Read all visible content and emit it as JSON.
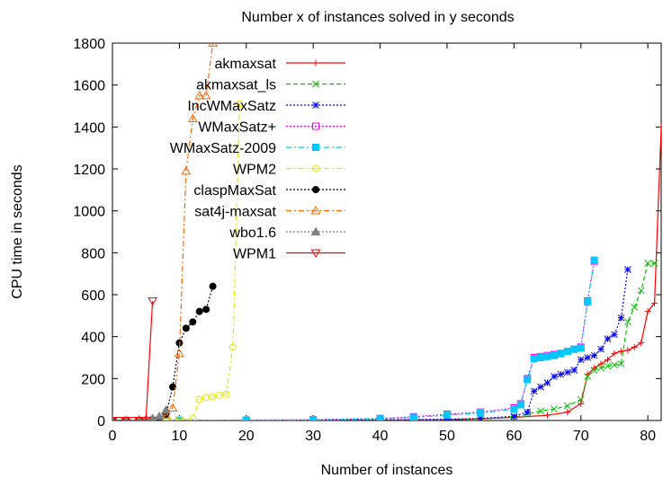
{
  "chart_data": {
    "type": "line",
    "title": "Number x of instances solved in y seconds",
    "xlabel": "Number of instances",
    "ylabel": "CPU time in seconds",
    "xlim": [
      0,
      82
    ],
    "ylim": [
      0,
      1800
    ],
    "xticks": [
      0,
      10,
      20,
      30,
      40,
      50,
      60,
      70,
      80
    ],
    "yticks": [
      0,
      200,
      400,
      600,
      800,
      1000,
      1200,
      1400,
      1600,
      1800
    ],
    "grid": false,
    "legend_position": "top-left",
    "series": [
      {
        "name": "akmaxsat",
        "color": "#ff0000",
        "marker": "plus",
        "dash": "solid",
        "x": [
          0,
          5,
          10,
          20,
          30,
          40,
          50,
          55,
          60,
          65,
          68,
          70,
          71,
          72,
          73,
          74,
          75,
          76,
          77,
          78,
          79,
          80,
          81,
          82
        ],
        "y": [
          0,
          0,
          0,
          0,
          1,
          2,
          4,
          8,
          15,
          25,
          40,
          80,
          220,
          250,
          270,
          290,
          320,
          330,
          335,
          350,
          370,
          520,
          560,
          1400
        ]
      },
      {
        "name": "akmaxsat_ls",
        "color": "#00c000",
        "marker": "x",
        "dash": "dashed",
        "x": [
          0,
          10,
          20,
          30,
          40,
          50,
          55,
          60,
          62,
          64,
          66,
          68,
          70,
          71,
          72,
          73,
          74,
          75,
          76,
          77,
          78,
          79,
          80,
          81
        ],
        "y": [
          0,
          0,
          0,
          0,
          1,
          3,
          8,
          15,
          30,
          45,
          55,
          70,
          100,
          210,
          240,
          250,
          260,
          265,
          270,
          470,
          540,
          620,
          750,
          750
        ]
      },
      {
        "name": "IncWMaxSatz",
        "color": "#0000ff",
        "marker": "star",
        "dash": "dotted",
        "x": [
          0,
          10,
          20,
          30,
          40,
          50,
          55,
          60,
          62,
          63,
          64,
          65,
          66,
          67,
          68,
          69,
          70,
          71,
          72,
          73,
          74,
          75,
          76,
          77
        ],
        "y": [
          0,
          0,
          1,
          2,
          3,
          6,
          10,
          20,
          40,
          140,
          160,
          180,
          210,
          220,
          230,
          240,
          290,
          300,
          310,
          340,
          390,
          410,
          490,
          720
        ]
      },
      {
        "name": "WMaxSatz+",
        "color": "#ff00ff",
        "marker": "open-square",
        "dash": "dotted",
        "x": [
          0,
          10,
          20,
          30,
          40,
          45,
          50,
          55,
          60,
          61,
          62,
          63,
          64,
          65,
          66,
          67,
          68,
          69,
          70,
          71,
          72
        ],
        "y": [
          0,
          1,
          2,
          4,
          10,
          18,
          30,
          40,
          60,
          80,
          200,
          300,
          305,
          310,
          315,
          320,
          330,
          340,
          350,
          570,
          760
        ]
      },
      {
        "name": "WMaxSatz-2009",
        "color": "#00c8ff",
        "marker": "filled-square",
        "dash": "dashdot",
        "x": [
          0,
          10,
          20,
          30,
          40,
          45,
          50,
          55,
          60,
          61,
          62,
          63,
          64,
          65,
          66,
          67,
          68,
          69,
          70,
          71,
          72
        ],
        "y": [
          0,
          1,
          2,
          3,
          8,
          15,
          25,
          35,
          55,
          75,
          195,
          295,
          300,
          305,
          310,
          318,
          330,
          340,
          345,
          565,
          765
        ]
      },
      {
        "name": "WPM2",
        "color": "#e6e600",
        "marker": "open-circle",
        "dash": "dashdot",
        "x": [
          0,
          2,
          4,
          6,
          8,
          10,
          12,
          13,
          14,
          15,
          16,
          17,
          18,
          19
        ],
        "y": [
          0,
          0,
          0,
          2,
          3,
          5,
          10,
          100,
          110,
          115,
          120,
          125,
          350,
          1510
        ]
      },
      {
        "name": "claspMaxSat",
        "color": "#000000",
        "marker": "filled-circle",
        "dash": "dotted",
        "x": [
          0,
          2,
          4,
          6,
          7,
          8,
          9,
          10,
          11,
          12,
          13,
          14,
          15
        ],
        "y": [
          0,
          1,
          2,
          5,
          10,
          30,
          160,
          370,
          440,
          470,
          520,
          530,
          640
        ]
      },
      {
        "name": "sat4j-maxsat",
        "color": "#ff6600",
        "marker": "open-triangle",
        "dash": "dashdot",
        "x": [
          0,
          2,
          4,
          6,
          7,
          8,
          9,
          10,
          11,
          12,
          13,
          14,
          15
        ],
        "y": [
          0,
          0,
          1,
          3,
          10,
          25,
          60,
          320,
          1190,
          1440,
          1550,
          1550,
          1800
        ]
      },
      {
        "name": "wbo1.6",
        "color": "#808080",
        "marker": "filled-triangle",
        "dash": "dotted",
        "x": [
          0,
          2,
          4,
          5,
          6,
          7,
          8
        ],
        "y": [
          0,
          1,
          3,
          5,
          10,
          20,
          50
        ]
      },
      {
        "name": "WPM1",
        "color": "#ff0000",
        "marker": "down-triangle",
        "dash": "solid",
        "x": [
          0,
          1,
          2,
          3,
          4,
          5,
          6
        ],
        "y": [
          0,
          0,
          0,
          0,
          0,
          0,
          570
        ]
      }
    ]
  }
}
